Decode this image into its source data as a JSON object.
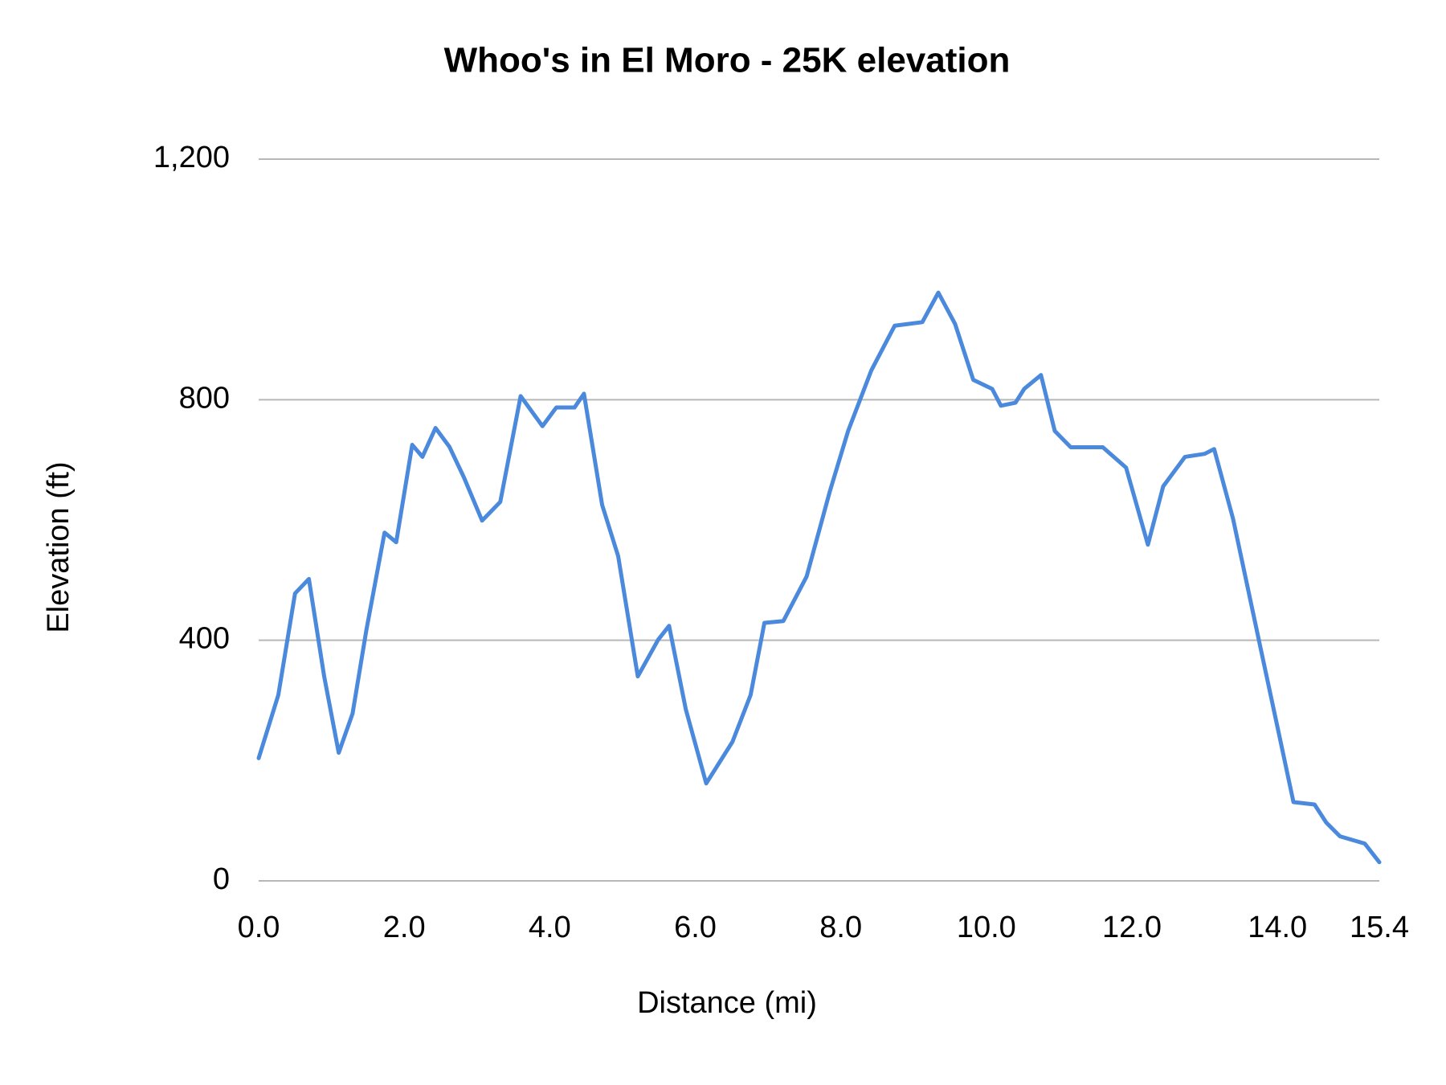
{
  "chart_data": {
    "type": "line",
    "title": "Whoo's in El Moro - 25K elevation",
    "x_label": "Distance (mi)",
    "y_label": "Elevation (ft)",
    "x": [
      0,
      0.27,
      0.5,
      0.69,
      0.9,
      1.1,
      1.29,
      1.48,
      1.73,
      1.89,
      2.11,
      2.25,
      2.43,
      2.62,
      2.82,
      3.07,
      3.32,
      3.6,
      3.9,
      4.09,
      4.34,
      4.47,
      4.72,
      4.94,
      5.21,
      5.49,
      5.64,
      5.87,
      6.15,
      6.51,
      6.76,
      6.95,
      7.21,
      7.53,
      7.85,
      8.1,
      8.42,
      8.74,
      9.12,
      9.34,
      9.57,
      9.82,
      10.08,
      10.2,
      10.4,
      10.52,
      10.75,
      10.94,
      11.16,
      11.6,
      11.92,
      12.22,
      12.43,
      12.73,
      13.0,
      13.13,
      13.39,
      13.77,
      14.03,
      14.22,
      14.51,
      14.67,
      14.86,
      15.2,
      15.4
    ],
    "series": [
      {
        "name": "Elevation",
        "color": "#4a89dc",
        "values": [
          204,
          309,
          478,
          502,
          340,
          213,
          278,
          417,
          579,
          563,
          725,
          705,
          753,
          722,
          671,
          599,
          630,
          806,
          756,
          787,
          787,
          810,
          625,
          540,
          340,
          401,
          424,
          285,
          162,
          231,
          309,
          429,
          432,
          506,
          648,
          748,
          849,
          923,
          929,
          978,
          926,
          833,
          818,
          790,
          795,
          818,
          841,
          748,
          721,
          721,
          687,
          559,
          656,
          705,
          710,
          718,
          602,
          386,
          239,
          131,
          127,
          97,
          74,
          62,
          31
        ]
      }
    ],
    "xlim": [
      0,
      15.4
    ],
    "xticks": [
      {
        "value": 0,
        "label": "0.0"
      },
      {
        "value": 2,
        "label": "2.0"
      },
      {
        "value": 4,
        "label": "4.0"
      },
      {
        "value": 6,
        "label": "6.0"
      },
      {
        "value": 8,
        "label": "8.0"
      },
      {
        "value": 10,
        "label": "10.0"
      },
      {
        "value": 12,
        "label": "12.0"
      },
      {
        "value": 14,
        "label": "14.0"
      },
      {
        "value": 15.4,
        "label": "15.4"
      }
    ],
    "ylim": [
      0,
      1200
    ],
    "yticks": [
      0,
      400,
      800,
      {
        "value": 1200,
        "label": "1,200"
      }
    ],
    "grid": true
  }
}
